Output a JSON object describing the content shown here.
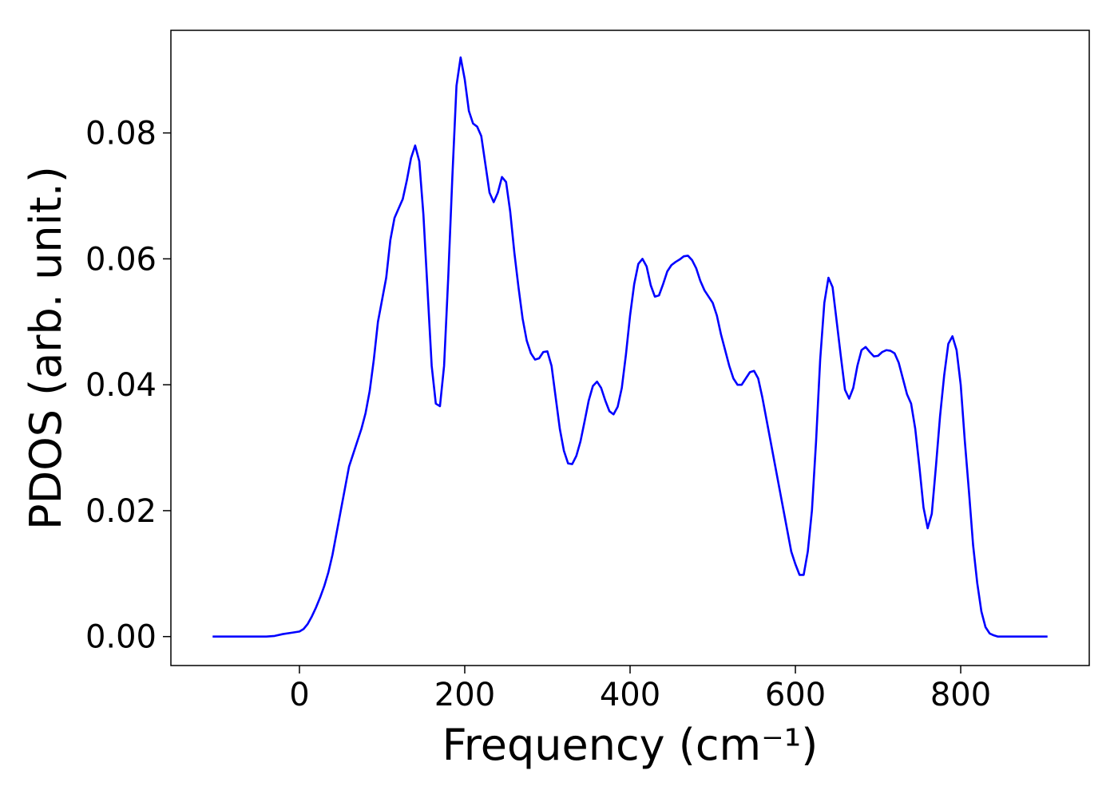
{
  "chart_data": {
    "type": "line",
    "xlabel": "Frequency (cm⁻¹)",
    "ylabel": "PDOS (arb. unit.)",
    "xlim": [
      -155.5,
      955.5
    ],
    "ylim": [
      -0.0046,
      0.0963
    ],
    "xticks": [
      0,
      200,
      400,
      600,
      800
    ],
    "yticks": [
      {
        "value": 0,
        "label": "0.00"
      },
      {
        "value": 0.02,
        "label": "0.02"
      },
      {
        "value": 0.04,
        "label": "0.04"
      },
      {
        "value": 0.06,
        "label": "0.06"
      },
      {
        "value": 0.08,
        "label": "0.08"
      }
    ],
    "grid": false,
    "x": [
      -105,
      -40,
      -30,
      -20,
      -10,
      0,
      5,
      10,
      15,
      20,
      25,
      30,
      35,
      40,
      45,
      50,
      55,
      60,
      65,
      70,
      75,
      80,
      85,
      90,
      95,
      105,
      110,
      115,
      120,
      125,
      130,
      135,
      140,
      145,
      150,
      155,
      160,
      165,
      170,
      175,
      180,
      185,
      190,
      195,
      200,
      205,
      210,
      215,
      220,
      225,
      230,
      235,
      240,
      245,
      250,
      255,
      260,
      265,
      270,
      275,
      280,
      285,
      290,
      295,
      300,
      305,
      310,
      315,
      320,
      325,
      330,
      335,
      340,
      345,
      350,
      355,
      360,
      365,
      370,
      375,
      380,
      385,
      390,
      395,
      400,
      405,
      410,
      415,
      420,
      425,
      430,
      435,
      440,
      445,
      450,
      455,
      460,
      465,
      470,
      475,
      480,
      485,
      490,
      495,
      500,
      505,
      510,
      515,
      520,
      525,
      530,
      535,
      540,
      545,
      550,
      555,
      560,
      565,
      570,
      575,
      580,
      585,
      590,
      595,
      600,
      605,
      610,
      615,
      620,
      625,
      630,
      635,
      640,
      645,
      650,
      655,
      660,
      665,
      670,
      675,
      680,
      685,
      690,
      695,
      700,
      705,
      710,
      715,
      720,
      725,
      730,
      735,
      740,
      745,
      750,
      755,
      760,
      765,
      770,
      775,
      780,
      785,
      790,
      795,
      800,
      805,
      810,
      815,
      820,
      825,
      830,
      835,
      840,
      845,
      905
    ],
    "series": [
      {
        "name": "PDOS",
        "color": "#0000ff",
        "values": [
          0,
          0,
          0.0001,
          0.0004,
          0.0006,
          0.0008,
          0.0012,
          0.002,
          0.0032,
          0.0046,
          0.0062,
          0.008,
          0.0102,
          0.013,
          0.0165,
          0.02,
          0.0235,
          0.027,
          0.029,
          0.031,
          0.033,
          0.0355,
          0.039,
          0.044,
          0.05,
          0.057,
          0.063,
          0.0665,
          0.068,
          0.0695,
          0.0725,
          0.076,
          0.078,
          0.0755,
          0.067,
          0.055,
          0.043,
          0.037,
          0.0366,
          0.043,
          0.057,
          0.073,
          0.0875,
          0.092,
          0.0885,
          0.0835,
          0.0815,
          0.081,
          0.0795,
          0.075,
          0.0705,
          0.069,
          0.0705,
          0.073,
          0.0722,
          0.0675,
          0.061,
          0.0555,
          0.0505,
          0.047,
          0.045,
          0.044,
          0.0442,
          0.0452,
          0.0453,
          0.043,
          0.038,
          0.033,
          0.0295,
          0.0275,
          0.0274,
          0.0287,
          0.031,
          0.0342,
          0.0375,
          0.0398,
          0.0405,
          0.0395,
          0.0375,
          0.0358,
          0.0353,
          0.0365,
          0.0395,
          0.0448,
          0.051,
          0.056,
          0.0592,
          0.06,
          0.0588,
          0.0558,
          0.054,
          0.0542,
          0.056,
          0.058,
          0.059,
          0.0595,
          0.0599,
          0.0604,
          0.0605,
          0.0598,
          0.0585,
          0.0565,
          0.055,
          0.054,
          0.053,
          0.051,
          0.048,
          0.0455,
          0.043,
          0.041,
          0.04,
          0.04,
          0.041,
          0.042,
          0.0422,
          0.041,
          0.038,
          0.0345,
          0.031,
          0.0275,
          0.024,
          0.0205,
          0.017,
          0.0135,
          0.0115,
          0.0098,
          0.0098,
          0.0135,
          0.02,
          0.031,
          0.044,
          0.053,
          0.057,
          0.0555,
          0.05,
          0.0445,
          0.0392,
          0.0378,
          0.0395,
          0.043,
          0.0455,
          0.046,
          0.0452,
          0.0445,
          0.0446,
          0.0452,
          0.0455,
          0.0454,
          0.045,
          0.0435,
          0.041,
          0.0385,
          0.037,
          0.033,
          0.027,
          0.0205,
          0.0172,
          0.0195,
          0.027,
          0.035,
          0.0415,
          0.0465,
          0.0477,
          0.0455,
          0.04,
          0.031,
          0.023,
          0.0145,
          0.0085,
          0.004,
          0.0015,
          0.0005,
          0.0002,
          0,
          0
        ]
      }
    ]
  }
}
